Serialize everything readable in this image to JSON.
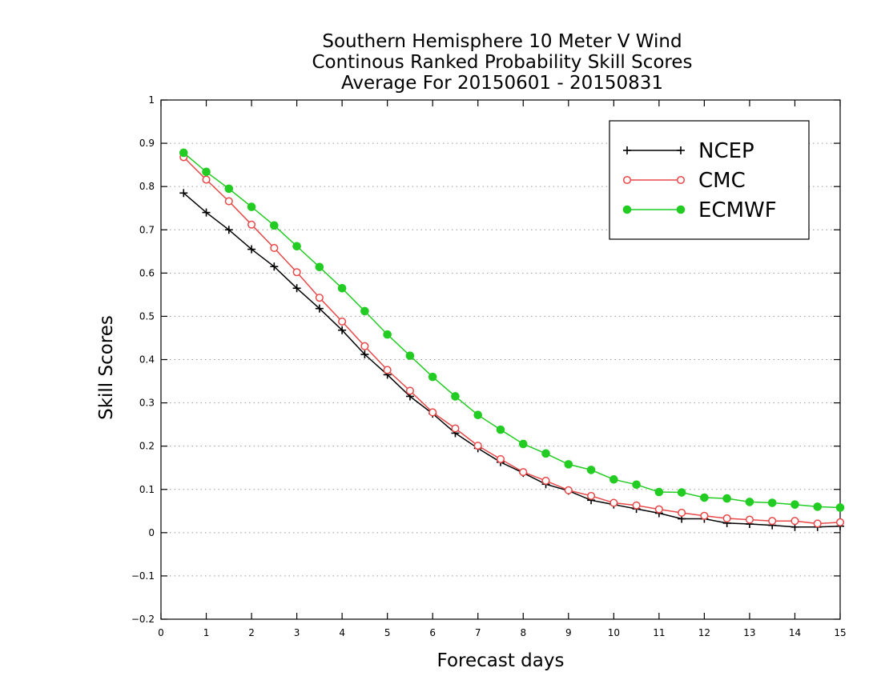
{
  "chart_data": {
    "type": "line",
    "title": [
      "Southern Hemisphere 10 Meter V Wind",
      "Continous Ranked Probability Skill Scores",
      "Average For 20150601 - 20150831"
    ],
    "xlabel": "Forecast days",
    "ylabel": "Skill Scores",
    "xlim": [
      0,
      15
    ],
    "ylim": [
      -0.2,
      1
    ],
    "xticks": [
      0,
      1,
      2,
      3,
      4,
      5,
      6,
      7,
      8,
      9,
      10,
      11,
      12,
      13,
      14,
      15
    ],
    "yticks": [
      -0.2,
      -0.1,
      0,
      0.1,
      0.2,
      0.3,
      0.4,
      0.5,
      0.6,
      0.7,
      0.8,
      0.9,
      1
    ],
    "grid": "horizontal-dotted",
    "legend_position": "top-right",
    "x": [
      0.5,
      1.0,
      1.5,
      2.0,
      2.5,
      3.0,
      3.5,
      4.0,
      4.5,
      5.0,
      5.5,
      6.0,
      6.5,
      7.0,
      7.5,
      8.0,
      8.5,
      9.0,
      9.5,
      10.0,
      10.5,
      11.0,
      11.5,
      12.0,
      12.5,
      13.0,
      13.5,
      14.0,
      14.5,
      15.0
    ],
    "series": [
      {
        "name": "NCEP",
        "color": "#000000",
        "marker": "plus",
        "values": [
          0.785,
          0.74,
          0.7,
          0.655,
          0.615,
          0.565,
          0.518,
          0.468,
          0.412,
          0.365,
          0.315,
          0.275,
          0.23,
          0.195,
          0.163,
          0.138,
          0.112,
          0.097,
          0.075,
          0.065,
          0.055,
          0.045,
          0.032,
          0.032,
          0.022,
          0.02,
          0.017,
          0.013,
          0.013,
          0.015
        ]
      },
      {
        "name": "CMC",
        "color": "#e84848",
        "marker": "open-circle",
        "values": [
          0.868,
          0.816,
          0.766,
          0.712,
          0.658,
          0.602,
          0.543,
          0.488,
          0.431,
          0.376,
          0.328,
          0.278,
          0.241,
          0.201,
          0.17,
          0.14,
          0.12,
          0.098,
          0.085,
          0.069,
          0.063,
          0.054,
          0.046,
          0.039,
          0.033,
          0.03,
          0.027,
          0.027,
          0.021,
          0.024
        ]
      },
      {
        "name": "ECMWF",
        "color": "#22cc22",
        "marker": "filled-circle",
        "values": [
          0.878,
          0.834,
          0.795,
          0.753,
          0.71,
          0.662,
          0.614,
          0.565,
          0.512,
          0.458,
          0.409,
          0.36,
          0.315,
          0.272,
          0.238,
          0.205,
          0.183,
          0.158,
          0.145,
          0.123,
          0.111,
          0.094,
          0.093,
          0.081,
          0.079,
          0.071,
          0.069,
          0.065,
          0.06,
          0.058
        ]
      }
    ]
  }
}
